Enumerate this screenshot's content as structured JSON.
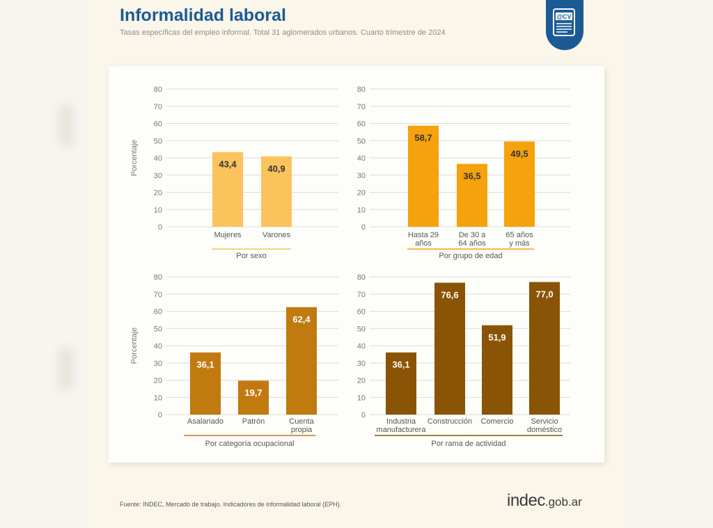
{
  "header": {
    "title": "Informalidad laboral",
    "subtitle": "Tasas específicas del empleo informal. Total 31 aglomerados urbanos. Cuarto trimestre de 2024",
    "badge_icon": "cv-document-icon",
    "badge_text": "@CV"
  },
  "footer": {
    "source": "Fuente: INDEC, Mercado de trabajo. Indicadores de informalidad laboral (EPH).",
    "logo_main": "indec",
    "logo_domain": ".gob.ar"
  },
  "colors": {
    "brand": "#1c5a96",
    "sexo": "#fbc35c",
    "edad": "#f5a20c",
    "categoria": "#c07a10",
    "rama": "#8a5406",
    "grid": "#dcdcdc"
  },
  "chart_data": [
    {
      "type": "bar",
      "group_label": "Por sexo",
      "ylabel": "Porcentaje",
      "ylim": [
        0,
        80
      ],
      "yticks": [
        "0",
        "10",
        "20",
        "30",
        "40",
        "50",
        "60",
        "70",
        "80"
      ],
      "categories": [
        [
          "Mujeres"
        ],
        [
          "Varones"
        ]
      ],
      "values": [
        43.4,
        40.9
      ],
      "labels": [
        "43,4",
        "40,9"
      ],
      "color": "#fbc35c",
      "label_color": "#333333"
    },
    {
      "type": "bar",
      "group_label": "Por grupo de edad",
      "ylabel": "",
      "ylim": [
        0,
        80
      ],
      "yticks": [
        "0",
        "10",
        "20",
        "30",
        "40",
        "50",
        "60",
        "70",
        "80"
      ],
      "categories": [
        [
          "Hasta 29",
          "años"
        ],
        [
          "De 30 a",
          "64 años"
        ],
        [
          "65 años",
          "y más"
        ]
      ],
      "values": [
        58.7,
        36.5,
        49.5
      ],
      "labels": [
        "58,7",
        "36,5",
        "49,5"
      ],
      "color": "#f5a20c",
      "label_color": "#333333"
    },
    {
      "type": "bar",
      "group_label": "Por categoría ocupacional",
      "ylabel": "Porcentaje",
      "ylim": [
        0,
        80
      ],
      "yticks": [
        "0",
        "10",
        "20",
        "30",
        "40",
        "50",
        "60",
        "70",
        "80"
      ],
      "categories": [
        [
          "Asalariado"
        ],
        [
          "Patrón"
        ],
        [
          "Cuenta",
          "propia"
        ]
      ],
      "values": [
        36.1,
        19.7,
        62.4
      ],
      "labels": [
        "36,1",
        "19,7",
        "62,4"
      ],
      "color": "#c07a10",
      "label_color": "#ffffff"
    },
    {
      "type": "bar",
      "group_label": "Por rama de actividad",
      "ylabel": "",
      "ylim": [
        0,
        80
      ],
      "yticks": [
        "0",
        "10",
        "20",
        "30",
        "40",
        "50",
        "60",
        "70",
        "80"
      ],
      "categories": [
        [
          "Industria",
          "manufacturera"
        ],
        [
          "Construcción"
        ],
        [
          "Comercio"
        ],
        [
          "Servicio",
          "doméstico"
        ]
      ],
      "values": [
        36.1,
        76.6,
        51.9,
        77.0
      ],
      "labels": [
        "36,1",
        "76,6",
        "51,9",
        "77,0"
      ],
      "color": "#8a5406",
      "label_color": "#ffffff"
    }
  ]
}
